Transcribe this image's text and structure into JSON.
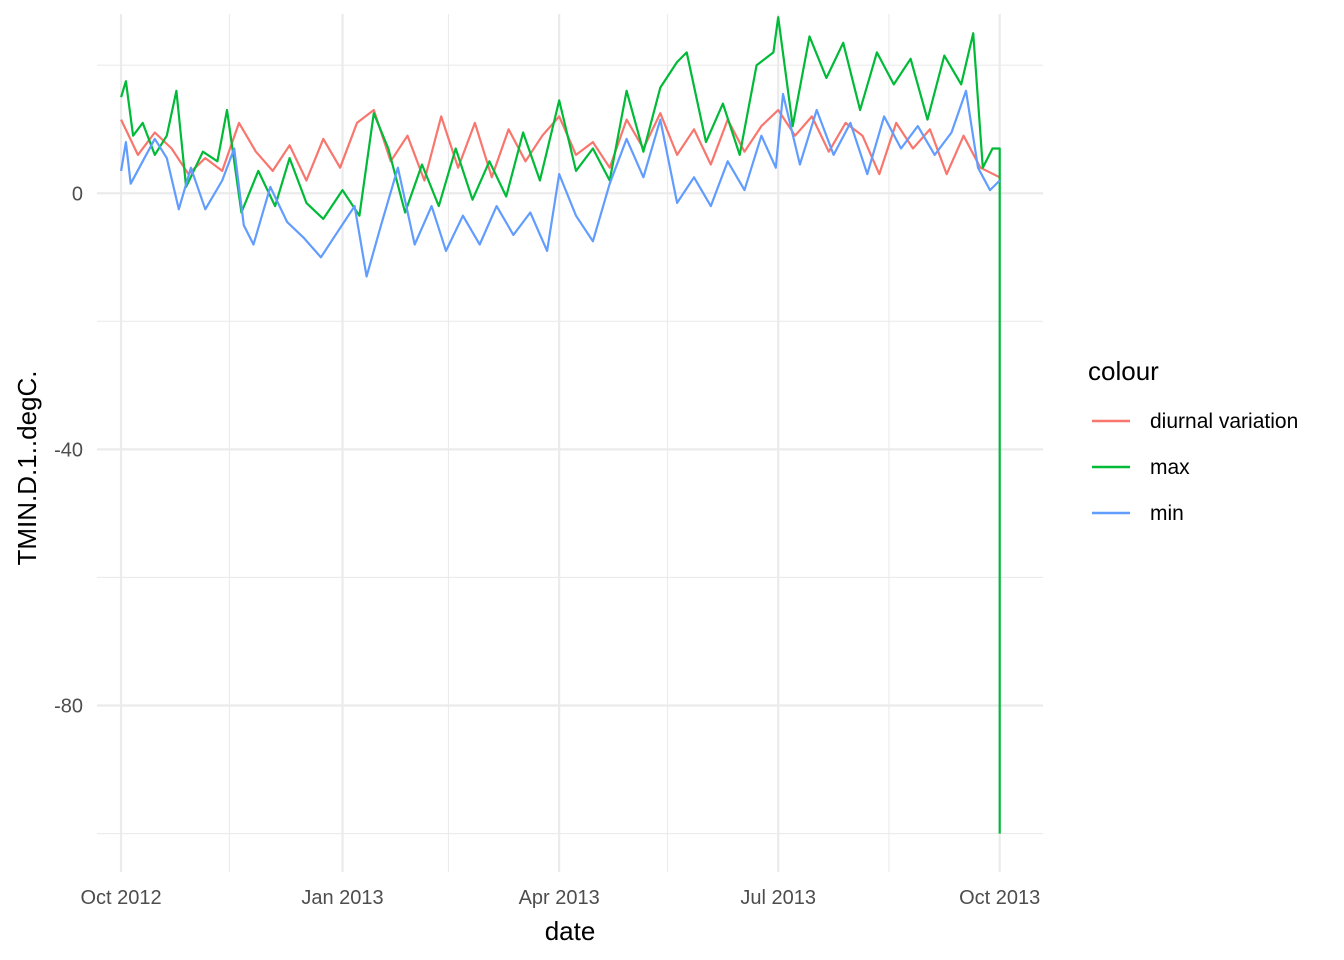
{
  "chart_data": {
    "type": "line",
    "title": "",
    "xlabel": "date",
    "ylabel": "TMIN.D.1..degC.",
    "x_type": "date",
    "xlim": [
      "2012-09-21",
      "2013-10-19"
    ],
    "ylim": [
      -106,
      28
    ],
    "x_ticks": [
      {
        "value": "2012-10-01",
        "label": "Oct 2012"
      },
      {
        "value": "2013-01-01",
        "label": "Jan 2013"
      },
      {
        "value": "2013-04-01",
        "label": "Apr 2013"
      },
      {
        "value": "2013-07-01",
        "label": "Jul 2013"
      },
      {
        "value": "2013-10-01",
        "label": "Oct 2013"
      }
    ],
    "x_minor_ticks": [
      "2012-11-15",
      "2013-02-14",
      "2013-05-16",
      "2013-08-16"
    ],
    "y_ticks": [
      {
        "value": 0,
        "label": "0"
      },
      {
        "value": -40,
        "label": "-40"
      },
      {
        "value": -80,
        "label": "-80"
      }
    ],
    "y_minor_ticks": [
      20,
      -20,
      -60,
      -100
    ],
    "grid": true,
    "legend": {
      "title": "colour",
      "position": "right"
    },
    "series": [
      {
        "name": "diurnal variation",
        "color": "#F8766D",
        "points": [
          [
            "2012-10-01",
            11.5
          ],
          [
            "2012-10-08",
            6.0
          ],
          [
            "2012-10-15",
            9.5
          ],
          [
            "2012-10-22",
            7.0
          ],
          [
            "2012-10-29",
            3.0
          ],
          [
            "2012-11-05",
            5.5
          ],
          [
            "2012-11-12",
            3.5
          ],
          [
            "2012-11-19",
            11.0
          ],
          [
            "2012-11-26",
            6.5
          ],
          [
            "2012-12-03",
            3.5
          ],
          [
            "2012-12-10",
            7.5
          ],
          [
            "2012-12-17",
            2.0
          ],
          [
            "2012-12-24",
            8.5
          ],
          [
            "2012-12-31",
            4.0
          ],
          [
            "2013-01-07",
            11.0
          ],
          [
            "2013-01-14",
            13.0
          ],
          [
            "2013-01-21",
            5.0
          ],
          [
            "2013-01-28",
            9.0
          ],
          [
            "2013-02-04",
            2.0
          ],
          [
            "2013-02-11",
            12.0
          ],
          [
            "2013-02-18",
            4.0
          ],
          [
            "2013-02-25",
            11.0
          ],
          [
            "2013-03-04",
            2.5
          ],
          [
            "2013-03-11",
            10.0
          ],
          [
            "2013-03-18",
            5.0
          ],
          [
            "2013-03-25",
            9.0
          ],
          [
            "2013-04-01",
            12.0
          ],
          [
            "2013-04-08",
            6.0
          ],
          [
            "2013-04-15",
            8.0
          ],
          [
            "2013-04-22",
            4.0
          ],
          [
            "2013-04-29",
            11.5
          ],
          [
            "2013-05-06",
            7.0
          ],
          [
            "2013-05-13",
            12.5
          ],
          [
            "2013-05-20",
            6.0
          ],
          [
            "2013-05-27",
            10.0
          ],
          [
            "2013-06-03",
            4.5
          ],
          [
            "2013-06-10",
            11.5
          ],
          [
            "2013-06-17",
            6.5
          ],
          [
            "2013-06-24",
            10.5
          ],
          [
            "2013-07-01",
            13.0
          ],
          [
            "2013-07-08",
            9.0
          ],
          [
            "2013-07-15",
            12.0
          ],
          [
            "2013-07-22",
            6.5
          ],
          [
            "2013-07-29",
            11.0
          ],
          [
            "2013-08-05",
            9.0
          ],
          [
            "2013-08-12",
            3.0
          ],
          [
            "2013-08-19",
            11.0
          ],
          [
            "2013-08-26",
            7.0
          ],
          [
            "2013-09-02",
            10.0
          ],
          [
            "2013-09-09",
            3.0
          ],
          [
            "2013-09-16",
            9.0
          ],
          [
            "2013-09-23",
            4.0
          ],
          [
            "2013-10-01",
            2.5
          ]
        ]
      },
      {
        "name": "max",
        "color": "#00BA38",
        "points": [
          [
            "2012-10-01",
            15.0
          ],
          [
            "2012-10-03",
            17.5
          ],
          [
            "2012-10-06",
            9.0
          ],
          [
            "2012-10-10",
            11.0
          ],
          [
            "2012-10-15",
            6.0
          ],
          [
            "2012-10-20",
            9.0
          ],
          [
            "2012-10-24",
            16.0
          ],
          [
            "2012-10-28",
            1.0
          ],
          [
            "2012-11-04",
            6.5
          ],
          [
            "2012-11-10",
            5.0
          ],
          [
            "2012-11-14",
            13.0
          ],
          [
            "2012-11-20",
            -3.0
          ],
          [
            "2012-11-27",
            3.5
          ],
          [
            "2012-12-04",
            -2.0
          ],
          [
            "2012-12-10",
            5.5
          ],
          [
            "2012-12-17",
            -1.5
          ],
          [
            "2012-12-24",
            -4.0
          ],
          [
            "2013-01-01",
            0.5
          ],
          [
            "2013-01-08",
            -3.5
          ],
          [
            "2013-01-14",
            12.5
          ],
          [
            "2013-01-20",
            7.0
          ],
          [
            "2013-01-27",
            -3.0
          ],
          [
            "2013-02-03",
            4.5
          ],
          [
            "2013-02-10",
            -2.0
          ],
          [
            "2013-02-17",
            7.0
          ],
          [
            "2013-02-24",
            -1.0
          ],
          [
            "2013-03-03",
            5.0
          ],
          [
            "2013-03-10",
            -0.5
          ],
          [
            "2013-03-17",
            9.5
          ],
          [
            "2013-03-24",
            2.0
          ],
          [
            "2013-04-01",
            14.5
          ],
          [
            "2013-04-08",
            3.5
          ],
          [
            "2013-04-15",
            7.0
          ],
          [
            "2013-04-22",
            2.0
          ],
          [
            "2013-04-29",
            16.0
          ],
          [
            "2013-05-06",
            6.5
          ],
          [
            "2013-05-13",
            16.5
          ],
          [
            "2013-05-20",
            20.5
          ],
          [
            "2013-05-24",
            22.0
          ],
          [
            "2013-06-01",
            8.0
          ],
          [
            "2013-06-08",
            14.0
          ],
          [
            "2013-06-15",
            6.0
          ],
          [
            "2013-06-22",
            20.0
          ],
          [
            "2013-06-29",
            22.0
          ],
          [
            "2013-07-01",
            27.5
          ],
          [
            "2013-07-07",
            10.5
          ],
          [
            "2013-07-14",
            24.5
          ],
          [
            "2013-07-21",
            18.0
          ],
          [
            "2013-07-28",
            23.5
          ],
          [
            "2013-08-04",
            13.0
          ],
          [
            "2013-08-11",
            22.0
          ],
          [
            "2013-08-18",
            17.0
          ],
          [
            "2013-08-25",
            21.0
          ],
          [
            "2013-09-01",
            11.5
          ],
          [
            "2013-09-08",
            21.5
          ],
          [
            "2013-09-15",
            17.0
          ],
          [
            "2013-09-20",
            25.0
          ],
          [
            "2013-09-24",
            4.0
          ],
          [
            "2013-09-28",
            7.0
          ],
          [
            "2013-10-01",
            7.0
          ],
          [
            "2013-10-01",
            -100.0
          ]
        ]
      },
      {
        "name": "min",
        "color": "#619CFF",
        "points": [
          [
            "2012-10-01",
            3.5
          ],
          [
            "2012-10-03",
            8.0
          ],
          [
            "2012-10-05",
            1.5
          ],
          [
            "2012-10-10",
            5.0
          ],
          [
            "2012-10-15",
            8.5
          ],
          [
            "2012-10-20",
            5.5
          ],
          [
            "2012-10-25",
            -2.5
          ],
          [
            "2012-10-30",
            4.0
          ],
          [
            "2012-11-05",
            -2.5
          ],
          [
            "2012-11-12",
            2.0
          ],
          [
            "2012-11-17",
            7.0
          ],
          [
            "2012-11-21",
            -5.0
          ],
          [
            "2012-11-25",
            -8.0
          ],
          [
            "2012-12-02",
            1.0
          ],
          [
            "2012-12-09",
            -4.5
          ],
          [
            "2012-12-16",
            -7.0
          ],
          [
            "2012-12-23",
            -10.0
          ],
          [
            "2012-12-30",
            -6.0
          ],
          [
            "2013-01-06",
            -2.0
          ],
          [
            "2013-01-11",
            -13.0
          ],
          [
            "2013-01-17",
            -5.0
          ],
          [
            "2013-01-24",
            4.0
          ],
          [
            "2013-01-31",
            -8.0
          ],
          [
            "2013-02-07",
            -2.0
          ],
          [
            "2013-02-13",
            -9.0
          ],
          [
            "2013-02-20",
            -3.5
          ],
          [
            "2013-02-27",
            -8.0
          ],
          [
            "2013-03-06",
            -2.0
          ],
          [
            "2013-03-13",
            -6.5
          ],
          [
            "2013-03-20",
            -3.0
          ],
          [
            "2013-03-27",
            -9.0
          ],
          [
            "2013-04-01",
            3.0
          ],
          [
            "2013-04-08",
            -3.5
          ],
          [
            "2013-04-15",
            -7.5
          ],
          [
            "2013-04-22",
            1.5
          ],
          [
            "2013-04-29",
            8.5
          ],
          [
            "2013-05-06",
            2.5
          ],
          [
            "2013-05-13",
            11.5
          ],
          [
            "2013-05-20",
            -1.5
          ],
          [
            "2013-05-27",
            2.5
          ],
          [
            "2013-06-03",
            -2.0
          ],
          [
            "2013-06-10",
            5.0
          ],
          [
            "2013-06-17",
            0.5
          ],
          [
            "2013-06-24",
            9.0
          ],
          [
            "2013-06-30",
            4.0
          ],
          [
            "2013-07-03",
            15.5
          ],
          [
            "2013-07-10",
            4.5
          ],
          [
            "2013-07-17",
            13.0
          ],
          [
            "2013-07-24",
            6.0
          ],
          [
            "2013-07-31",
            11.0
          ],
          [
            "2013-08-07",
            3.0
          ],
          [
            "2013-08-14",
            12.0
          ],
          [
            "2013-08-21",
            7.0
          ],
          [
            "2013-08-28",
            10.5
          ],
          [
            "2013-09-04",
            6.0
          ],
          [
            "2013-09-11",
            9.5
          ],
          [
            "2013-09-17",
            16.0
          ],
          [
            "2013-09-22",
            4.0
          ],
          [
            "2013-09-27",
            0.5
          ],
          [
            "2013-10-01",
            2.0
          ]
        ]
      }
    ]
  }
}
